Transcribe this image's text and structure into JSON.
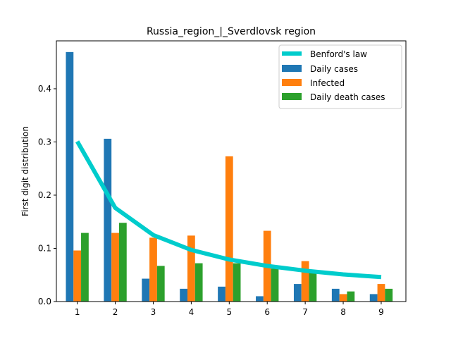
{
  "chart_data": {
    "type": "bar",
    "title": "Russia_region_|_Sverdlovsk region",
    "xlabel": "",
    "ylabel": "First digit distribution",
    "categories": [
      "1",
      "2",
      "3",
      "4",
      "5",
      "6",
      "7",
      "8",
      "9"
    ],
    "x_ticks": [
      "1",
      "2",
      "3",
      "4",
      "5",
      "6",
      "7",
      "8",
      "9"
    ],
    "y_ticks": [
      "0.0",
      "0.1",
      "0.2",
      "0.3",
      "0.4"
    ],
    "ylim": [
      0,
      0.49
    ],
    "xlim": [
      0.45,
      9.65
    ],
    "grid": false,
    "legend_position": "upper right",
    "line": {
      "name": "Benford's law",
      "color": "#00cccc",
      "values": [
        0.301,
        0.176,
        0.125,
        0.097,
        0.079,
        0.067,
        0.058,
        0.051,
        0.046
      ]
    },
    "series": [
      {
        "name": "Daily cases",
        "color": "#1f77b4",
        "values": [
          0.469,
          0.306,
          0.043,
          0.024,
          0.028,
          0.01,
          0.033,
          0.024,
          0.014
        ]
      },
      {
        "name": "Infected",
        "color": "#ff7f0e",
        "values": [
          0.096,
          0.129,
          0.12,
          0.124,
          0.273,
          0.133,
          0.076,
          0.014,
          0.033
        ]
      },
      {
        "name": "Daily death cases",
        "color": "#2ca02c",
        "values": [
          0.129,
          0.148,
          0.067,
          0.072,
          0.072,
          0.062,
          0.057,
          0.019,
          0.024
        ]
      }
    ]
  }
}
